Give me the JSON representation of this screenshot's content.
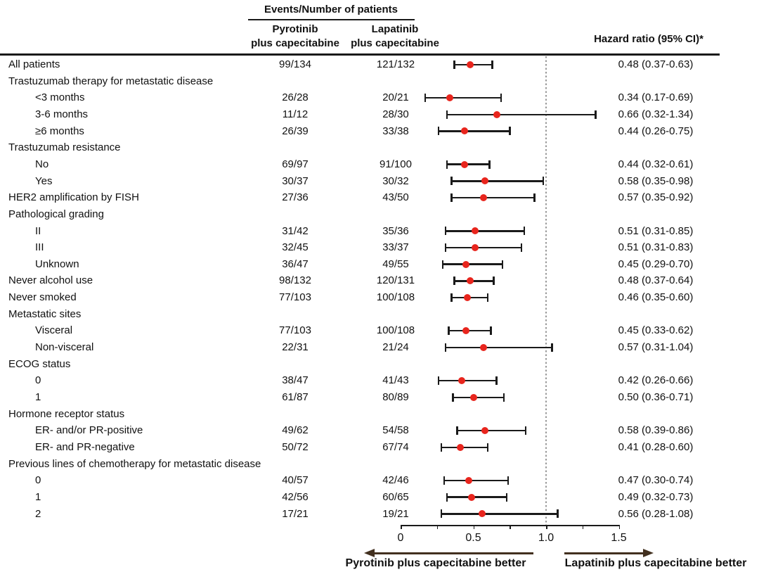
{
  "header": {
    "events_group": "Events/Number of patients",
    "col1_line1": "Pyrotinib",
    "col1_line2": "plus capecitabine",
    "col2_line1": "Lapatinib",
    "col2_line2": "plus capecitabine",
    "hazard": "Hazard ratio (95% CI)*"
  },
  "colors": {
    "marker_red": "#e8251d",
    "ci_black": "#1a1a1a",
    "ref_gray": "#9a9a9a",
    "arrow_brown": "#42301f"
  },
  "chart_data": {
    "type": "forest",
    "title": "",
    "xlabel": "Hazard ratio",
    "axis": {
      "xlim": [
        0,
        1.5
      ],
      "major_tick_labels": [
        {
          "v": 0.0,
          "label": "0"
        },
        {
          "v": 0.5,
          "label": "0.5"
        },
        {
          "v": 1.0,
          "label": "1.0"
        },
        {
          "v": 1.5,
          "label": "1.5"
        }
      ],
      "tick_step": 0.25,
      "reference_line": 1.0
    },
    "footer": {
      "left_better": "Pyrotinib plus capecitabine better",
      "right_better": "Lapatinib plus capecitabine better"
    },
    "rows": [
      {
        "label": "All patients",
        "indent": 0,
        "group": false,
        "pyrotinib": "99/134",
        "lapatinib": "121/132",
        "hr": 0.48,
        "lo": 0.37,
        "hi": 0.63,
        "hr_text": "0.48 (0.37-0.63)"
      },
      {
        "label": "Trastuzumab therapy for metastatic disease",
        "indent": 0,
        "group": true
      },
      {
        "label": "<3 months",
        "indent": 1,
        "group": false,
        "pyrotinib": "26/28",
        "lapatinib": "20/21",
        "hr": 0.34,
        "lo": 0.17,
        "hi": 0.69,
        "hr_text": "0.34 (0.17-0.69)"
      },
      {
        "label": "3-6 months",
        "indent": 1,
        "group": false,
        "pyrotinib": "11/12",
        "lapatinib": "28/30",
        "hr": 0.66,
        "lo": 0.32,
        "hi": 1.34,
        "hr_text": "0.66 (0.32-1.34)"
      },
      {
        "label": "≥6 months",
        "indent": 1,
        "group": false,
        "pyrotinib": "26/39",
        "lapatinib": "33/38",
        "hr": 0.44,
        "lo": 0.26,
        "hi": 0.75,
        "hr_text": "0.44 (0.26-0.75)"
      },
      {
        "label": "Trastuzumab resistance",
        "indent": 0,
        "group": true
      },
      {
        "label": "No",
        "indent": 1,
        "group": false,
        "pyrotinib": "69/97",
        "lapatinib": "91/100",
        "hr": 0.44,
        "lo": 0.32,
        "hi": 0.61,
        "hr_text": "0.44 (0.32-0.61)"
      },
      {
        "label": "Yes",
        "indent": 1,
        "group": false,
        "pyrotinib": "30/37",
        "lapatinib": "30/32",
        "hr": 0.58,
        "lo": 0.35,
        "hi": 0.98,
        "hr_text": "0.58 (0.35-0.98)"
      },
      {
        "label": "HER2 amplification by FISH",
        "indent": 0,
        "group": false,
        "pyrotinib": "27/36",
        "lapatinib": "43/50",
        "hr": 0.57,
        "lo": 0.35,
        "hi": 0.92,
        "hr_text": "0.57 (0.35-0.92)"
      },
      {
        "label": "Pathological grading",
        "indent": 0,
        "group": true
      },
      {
        "label": "II",
        "indent": 1,
        "group": false,
        "pyrotinib": "31/42",
        "lapatinib": "35/36",
        "hr": 0.51,
        "lo": 0.31,
        "hi": 0.85,
        "hr_text": "0.51 (0.31-0.85)"
      },
      {
        "label": "III",
        "indent": 1,
        "group": false,
        "pyrotinib": "32/45",
        "lapatinib": "33/37",
        "hr": 0.51,
        "lo": 0.31,
        "hi": 0.83,
        "hr_text": "0.51 (0.31-0.83)"
      },
      {
        "label": "Unknown",
        "indent": 1,
        "group": false,
        "pyrotinib": "36/47",
        "lapatinib": "49/55",
        "hr": 0.45,
        "lo": 0.29,
        "hi": 0.7,
        "hr_text": "0.45 (0.29-0.70)"
      },
      {
        "label": "Never alcohol use",
        "indent": 0,
        "group": false,
        "pyrotinib": "98/132",
        "lapatinib": "120/131",
        "hr": 0.48,
        "lo": 0.37,
        "hi": 0.64,
        "hr_text": "0.48 (0.37-0.64)"
      },
      {
        "label": "Never smoked",
        "indent": 0,
        "group": false,
        "pyrotinib": "77/103",
        "lapatinib": "100/108",
        "hr": 0.46,
        "lo": 0.35,
        "hi": 0.6,
        "hr_text": "0.46 (0.35-0.60)"
      },
      {
        "label": "Metastatic sites",
        "indent": 0,
        "group": true
      },
      {
        "label": "Visceral",
        "indent": 1,
        "group": false,
        "pyrotinib": "77/103",
        "lapatinib": "100/108",
        "hr": 0.45,
        "lo": 0.33,
        "hi": 0.62,
        "hr_text": "0.45 (0.33-0.62)"
      },
      {
        "label": "Non-visceral",
        "indent": 1,
        "group": false,
        "pyrotinib": "22/31",
        "lapatinib": "21/24",
        "hr": 0.57,
        "lo": 0.31,
        "hi": 1.04,
        "hr_text": "0.57 (0.31-1.04)"
      },
      {
        "label": "ECOG status",
        "indent": 0,
        "group": true
      },
      {
        "label": "0",
        "indent": 1,
        "group": false,
        "pyrotinib": "38/47",
        "lapatinib": "41/43",
        "hr": 0.42,
        "lo": 0.26,
        "hi": 0.66,
        "hr_text": "0.42 (0.26-0.66)"
      },
      {
        "label": "1",
        "indent": 1,
        "group": false,
        "pyrotinib": "61/87",
        "lapatinib": "80/89",
        "hr": 0.5,
        "lo": 0.36,
        "hi": 0.71,
        "hr_text": "0.50 (0.36-0.71)"
      },
      {
        "label": "Hormone receptor status",
        "indent": 0,
        "group": true
      },
      {
        "label": "ER- and/or PR-positive",
        "indent": 1,
        "group": false,
        "pyrotinib": "49/62",
        "lapatinib": "54/58",
        "hr": 0.58,
        "lo": 0.39,
        "hi": 0.86,
        "hr_text": "0.58 (0.39-0.86)"
      },
      {
        "label": "ER- and PR-negative",
        "indent": 1,
        "group": false,
        "pyrotinib": "50/72",
        "lapatinib": "67/74",
        "hr": 0.41,
        "lo": 0.28,
        "hi": 0.6,
        "hr_text": "0.41 (0.28-0.60)"
      },
      {
        "label": "Previous lines of chemotherapy for metastatic disease",
        "indent": 0,
        "group": true
      },
      {
        "label": "0",
        "indent": 1,
        "group": false,
        "pyrotinib": "40/57",
        "lapatinib": "42/46",
        "hr": 0.47,
        "lo": 0.3,
        "hi": 0.74,
        "hr_text": "0.47 (0.30-0.74)"
      },
      {
        "label": "1",
        "indent": 1,
        "group": false,
        "pyrotinib": "42/56",
        "lapatinib": "60/65",
        "hr": 0.49,
        "lo": 0.32,
        "hi": 0.73,
        "hr_text": "0.49 (0.32-0.73)"
      },
      {
        "label": "2",
        "indent": 1,
        "group": false,
        "pyrotinib": "17/21",
        "lapatinib": "19/21",
        "hr": 0.56,
        "lo": 0.28,
        "hi": 1.08,
        "hr_text": "0.56 (0.28-1.08)"
      }
    ]
  }
}
